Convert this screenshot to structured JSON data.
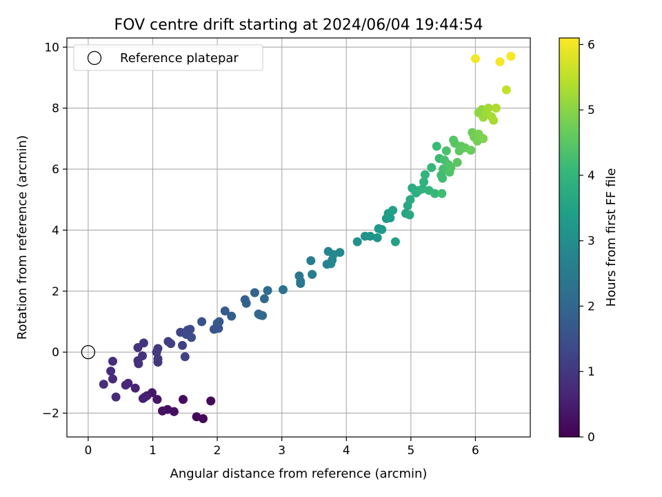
{
  "chart_data": {
    "type": "scatter",
    "title": "FOV centre drift starting at 2024/06/04 19:44:54",
    "xlabel": "Angular distance from reference (arcmin)",
    "ylabel": "Rotation from reference (arcmin)",
    "xlim": [
      -0.33,
      6.85
    ],
    "ylim": [
      -2.78,
      10.3
    ],
    "xticks": [
      0,
      1,
      2,
      3,
      4,
      5,
      6
    ],
    "yticks": [
      -2,
      0,
      2,
      4,
      6,
      8,
      10
    ],
    "xtick_labels": [
      "0",
      "1",
      "2",
      "3",
      "4",
      "5",
      "6"
    ],
    "ytick_labels": [
      "−2",
      "0",
      "2",
      "4",
      "6",
      "8",
      "10"
    ],
    "grid": true,
    "legend": {
      "placement": "upper-left",
      "entries": [
        {
          "label": "Reference platepar",
          "marker": "open-circle",
          "color": "#000000"
        }
      ]
    },
    "reference_point": {
      "x": 0,
      "y": 0,
      "label": "Reference platepar"
    },
    "colorbar": {
      "label": "Hours from first FF file",
      "colormap": "viridis",
      "range": [
        0,
        6.1
      ],
      "ticks": [
        0,
        1,
        2,
        3,
        4,
        5,
        6
      ],
      "tick_labels": [
        "0",
        "1",
        "2",
        "3",
        "4",
        "5",
        "6"
      ],
      "colormap_stops": [
        "#440154",
        "#482878",
        "#3e4989",
        "#31688e",
        "#26828e",
        "#1f9e89",
        "#35b779",
        "#6ece58",
        "#b5de2b",
        "#fde725"
      ]
    },
    "points": [
      {
        "x": 1.78,
        "y": -2.18,
        "t": 0.1
      },
      {
        "x": 1.68,
        "y": -2.12,
        "t": 0.12
      },
      {
        "x": 1.9,
        "y": -1.6,
        "t": 0.15
      },
      {
        "x": 1.47,
        "y": -1.55,
        "t": 0.18
      },
      {
        "x": 1.33,
        "y": -1.95,
        "t": 0.2
      },
      {
        "x": 1.23,
        "y": -1.88,
        "t": 0.25
      },
      {
        "x": 1.15,
        "y": -1.93,
        "t": 0.3
      },
      {
        "x": 1.07,
        "y": -1.55,
        "t": 0.35
      },
      {
        "x": 0.99,
        "y": -1.33,
        "t": 0.4
      },
      {
        "x": 0.91,
        "y": -1.43,
        "t": 0.45
      },
      {
        "x": 0.85,
        "y": -1.52,
        "t": 0.5
      },
      {
        "x": 0.88,
        "y": -1.47,
        "t": 0.55
      },
      {
        "x": 0.73,
        "y": -1.18,
        "t": 0.6
      },
      {
        "x": 0.62,
        "y": -1.02,
        "t": 0.65
      },
      {
        "x": 0.58,
        "y": -1.08,
        "t": 0.7
      },
      {
        "x": 0.43,
        "y": -1.47,
        "t": 0.72
      },
      {
        "x": 0.38,
        "y": -0.88,
        "t": 0.75
      },
      {
        "x": 0.35,
        "y": -0.62,
        "t": 0.78
      },
      {
        "x": 0.38,
        "y": -0.3,
        "t": 0.8
      },
      {
        "x": 0.24,
        "y": -1.05,
        "t": 0.82
      },
      {
        "x": 0.78,
        "y": -0.38,
        "t": 0.85
      },
      {
        "x": 0.77,
        "y": -0.28,
        "t": 0.88
      },
      {
        "x": 0.84,
        "y": -0.12,
        "t": 0.9
      },
      {
        "x": 0.77,
        "y": 0.15,
        "t": 0.92
      },
      {
        "x": 0.86,
        "y": 0.3,
        "t": 0.95
      },
      {
        "x": 1.08,
        "y": -0.33,
        "t": 0.98
      },
      {
        "x": 1.08,
        "y": -0.22,
        "t": 1.0
      },
      {
        "x": 1.08,
        "y": 0.12,
        "t": 1.02
      },
      {
        "x": 1.06,
        "y": 0.0,
        "t": 1.05
      },
      {
        "x": 1.24,
        "y": 0.35,
        "t": 1.1
      },
      {
        "x": 1.28,
        "y": 0.28,
        "t": 1.15
      },
      {
        "x": 1.46,
        "y": 0.22,
        "t": 1.2
      },
      {
        "x": 1.5,
        "y": -0.15,
        "t": 1.25
      },
      {
        "x": 1.43,
        "y": 0.65,
        "t": 1.3
      },
      {
        "x": 1.54,
        "y": 0.72,
        "t": 1.35
      },
      {
        "x": 1.58,
        "y": 0.75,
        "t": 1.38
      },
      {
        "x": 1.52,
        "y": 0.58,
        "t": 1.4
      },
      {
        "x": 1.6,
        "y": 0.48,
        "t": 1.45
      },
      {
        "x": 1.76,
        "y": 1.0,
        "t": 1.55
      },
      {
        "x": 1.95,
        "y": 0.75,
        "t": 1.6
      },
      {
        "x": 2.02,
        "y": 0.78,
        "t": 1.65
      },
      {
        "x": 2.0,
        "y": 0.95,
        "t": 1.7
      },
      {
        "x": 2.03,
        "y": 1.0,
        "t": 1.72
      },
      {
        "x": 2.12,
        "y": 1.35,
        "t": 1.75
      },
      {
        "x": 2.22,
        "y": 1.18,
        "t": 1.8
      },
      {
        "x": 2.43,
        "y": 1.72,
        "t": 1.85
      },
      {
        "x": 2.45,
        "y": 1.6,
        "t": 1.9
      },
      {
        "x": 2.58,
        "y": 1.95,
        "t": 1.95
      },
      {
        "x": 2.64,
        "y": 1.25,
        "t": 2.0
      },
      {
        "x": 2.66,
        "y": 1.22,
        "t": 2.02
      },
      {
        "x": 2.7,
        "y": 1.2,
        "t": 2.05
      },
      {
        "x": 2.73,
        "y": 1.75,
        "t": 2.1
      },
      {
        "x": 2.78,
        "y": 2.02,
        "t": 2.15
      },
      {
        "x": 3.02,
        "y": 2.05,
        "t": 2.3
      },
      {
        "x": 3.27,
        "y": 2.5,
        "t": 2.4
      },
      {
        "x": 3.29,
        "y": 2.25,
        "t": 2.45
      },
      {
        "x": 3.29,
        "y": 2.32,
        "t": 2.48
      },
      {
        "x": 3.45,
        "y": 3.0,
        "t": 2.55
      },
      {
        "x": 3.47,
        "y": 2.55,
        "t": 2.6
      },
      {
        "x": 3.7,
        "y": 2.88,
        "t": 2.7
      },
      {
        "x": 3.72,
        "y": 3.3,
        "t": 2.75
      },
      {
        "x": 3.76,
        "y": 2.9,
        "t": 2.8
      },
      {
        "x": 3.78,
        "y": 3.02,
        "t": 2.82
      },
      {
        "x": 3.8,
        "y": 3.2,
        "t": 2.85
      },
      {
        "x": 3.9,
        "y": 3.27,
        "t": 2.9
      },
      {
        "x": 4.17,
        "y": 3.62,
        "t": 3.05
      },
      {
        "x": 4.29,
        "y": 3.8,
        "t": 3.1
      },
      {
        "x": 4.37,
        "y": 3.8,
        "t": 3.15
      },
      {
        "x": 4.48,
        "y": 3.75,
        "t": 3.2
      },
      {
        "x": 4.5,
        "y": 4.05,
        "t": 3.25
      },
      {
        "x": 4.55,
        "y": 4.02,
        "t": 3.3
      },
      {
        "x": 4.62,
        "y": 4.38,
        "t": 3.35
      },
      {
        "x": 4.65,
        "y": 4.55,
        "t": 3.38
      },
      {
        "x": 4.68,
        "y": 4.4,
        "t": 3.4
      },
      {
        "x": 4.72,
        "y": 4.65,
        "t": 3.45
      },
      {
        "x": 4.76,
        "y": 3.62,
        "t": 3.5
      },
      {
        "x": 4.92,
        "y": 4.55,
        "t": 3.6
      },
      {
        "x": 4.95,
        "y": 4.8,
        "t": 3.65
      },
      {
        "x": 4.98,
        "y": 4.5,
        "t": 3.68
      },
      {
        "x": 4.99,
        "y": 5.0,
        "t": 3.72
      },
      {
        "x": 5.02,
        "y": 5.38,
        "t": 3.78
      },
      {
        "x": 5.08,
        "y": 5.22,
        "t": 3.82
      },
      {
        "x": 5.12,
        "y": 5.3,
        "t": 3.85
      },
      {
        "x": 5.18,
        "y": 5.35,
        "t": 3.9
      },
      {
        "x": 5.2,
        "y": 5.58,
        "t": 3.95
      },
      {
        "x": 5.22,
        "y": 5.82,
        "t": 3.98
      },
      {
        "x": 5.28,
        "y": 5.3,
        "t": 4.02
      },
      {
        "x": 5.32,
        "y": 6.05,
        "t": 4.05
      },
      {
        "x": 5.37,
        "y": 5.2,
        "t": 4.08
      },
      {
        "x": 5.4,
        "y": 6.75,
        "t": 4.12
      },
      {
        "x": 5.44,
        "y": 6.35,
        "t": 4.15
      },
      {
        "x": 5.47,
        "y": 5.8,
        "t": 4.18
      },
      {
        "x": 5.48,
        "y": 5.2,
        "t": 4.2
      },
      {
        "x": 5.49,
        "y": 5.7,
        "t": 4.22
      },
      {
        "x": 5.5,
        "y": 6.0,
        "t": 4.25
      },
      {
        "x": 5.52,
        "y": 6.3,
        "t": 4.28
      },
      {
        "x": 5.55,
        "y": 6.6,
        "t": 4.32
      },
      {
        "x": 5.58,
        "y": 6.15,
        "t": 4.35
      },
      {
        "x": 5.6,
        "y": 5.9,
        "t": 4.38
      },
      {
        "x": 5.62,
        "y": 6.05,
        "t": 4.42
      },
      {
        "x": 5.66,
        "y": 6.95,
        "t": 4.46
      },
      {
        "x": 5.68,
        "y": 6.85,
        "t": 4.48
      },
      {
        "x": 5.72,
        "y": 6.22,
        "t": 4.52
      },
      {
        "x": 5.75,
        "y": 6.6,
        "t": 4.55
      },
      {
        "x": 5.78,
        "y": 6.75,
        "t": 4.58
      },
      {
        "x": 5.84,
        "y": 6.7,
        "t": 4.62
      },
      {
        "x": 5.93,
        "y": 6.62,
        "t": 4.68
      },
      {
        "x": 5.95,
        "y": 7.2,
        "t": 4.72
      },
      {
        "x": 5.98,
        "y": 7.05,
        "t": 4.75
      },
      {
        "x": 6.03,
        "y": 6.92,
        "t": 4.8
      },
      {
        "x": 6.05,
        "y": 7.15,
        "t": 4.85
      },
      {
        "x": 6.12,
        "y": 7.0,
        "t": 4.9
      },
      {
        "x": 6.05,
        "y": 7.85,
        "t": 5.05
      },
      {
        "x": 6.1,
        "y": 7.95,
        "t": 5.1
      },
      {
        "x": 6.12,
        "y": 7.7,
        "t": 5.15
      },
      {
        "x": 6.18,
        "y": 7.82,
        "t": 5.2
      },
      {
        "x": 6.2,
        "y": 8.0,
        "t": 5.25
      },
      {
        "x": 6.25,
        "y": 7.72,
        "t": 5.28
      },
      {
        "x": 6.28,
        "y": 7.6,
        "t": 5.3
      },
      {
        "x": 6.32,
        "y": 8.0,
        "t": 5.35
      },
      {
        "x": 6.48,
        "y": 8.6,
        "t": 5.55
      },
      {
        "x": 6.0,
        "y": 9.62,
        "t": 6.0
      },
      {
        "x": 6.38,
        "y": 9.52,
        "t": 6.02
      },
      {
        "x": 6.55,
        "y": 9.7,
        "t": 6.05
      }
    ]
  }
}
